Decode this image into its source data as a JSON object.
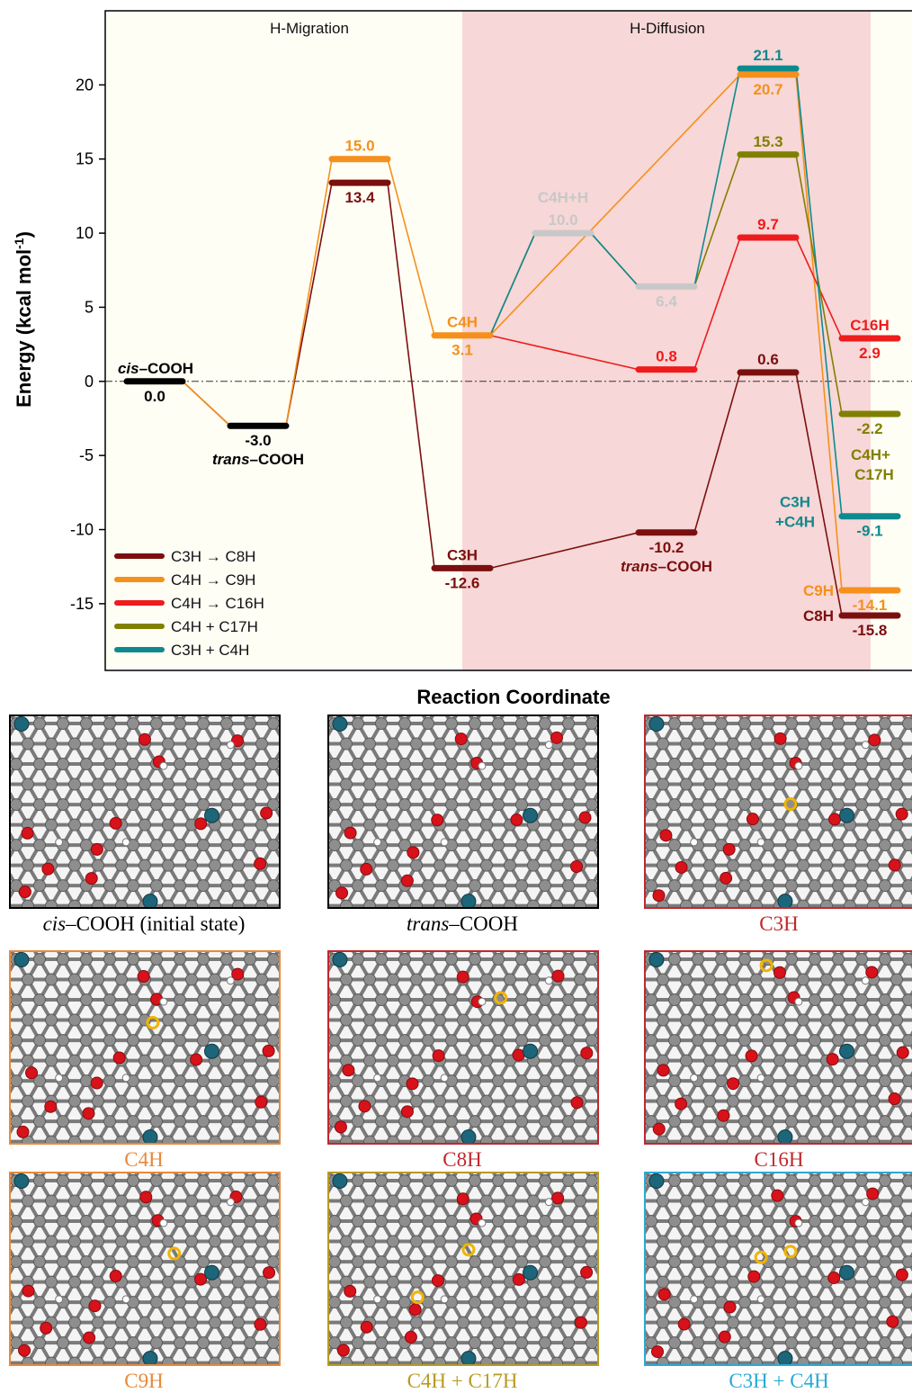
{
  "chart_data": {
    "type": "line",
    "xlabel": "Reaction Coordinate",
    "ylabel": "Energy (kcal mol",
    "ylabel_sup": "-1",
    "ylabel_close": ")",
    "ylim": [
      -19.5,
      25
    ],
    "yticks": [
      -15,
      -10,
      -5,
      0,
      5,
      10,
      15,
      20
    ],
    "regions": [
      {
        "label": "H-Migration",
        "background": "#fefef5"
      },
      {
        "label": "H-Diffusion",
        "background": "#f7d7d7"
      }
    ],
    "colors": {
      "base": "#000000",
      "c3h_c8h": "#7b0f0f",
      "c4h_c9h": "#f5901c",
      "c4h_c16h": "#ee1c1c",
      "c4h_c17h": "#808000",
      "c3h_c4h": "#0e8a8e",
      "intermediate": "#c8c8c8"
    },
    "levels": [
      {
        "id": "cis",
        "x": 1,
        "y": 0.0,
        "value": "0.0",
        "color": "base",
        "name_pre": "cis",
        "name_post": "–COOH"
      },
      {
        "id": "trans",
        "x": 2,
        "y": -3.0,
        "value": "-3.0",
        "color": "base",
        "name_pre": "trans",
        "name_post": "–COOH"
      },
      {
        "id": "ts1_orange",
        "x": 3,
        "y": 15.0,
        "value": "15.0",
        "color": "c4h_c9h"
      },
      {
        "id": "ts1_dark",
        "x": 3,
        "y": 13.4,
        "value": "13.4",
        "color": "c3h_c8h"
      },
      {
        "id": "c3h",
        "x": 4,
        "y": -12.6,
        "value": "-12.6",
        "color": "c3h_c8h",
        "name": "C3H"
      },
      {
        "id": "c4h",
        "x": 4,
        "y": 3.1,
        "value": "3.1",
        "color": "c4h_c9h",
        "name": "C4H"
      },
      {
        "id": "c4h_h",
        "x": 5,
        "y": 10.0,
        "value": "10.0",
        "color": "intermediate",
        "name": "C4H+H"
      },
      {
        "id": "int_64",
        "x": 6,
        "y": 6.4,
        "value": "6.4",
        "color": "intermediate"
      },
      {
        "id": "int_08",
        "x": 6,
        "y": 0.8,
        "value": "0.8",
        "color": "c4h_c16h"
      },
      {
        "id": "trans2",
        "x": 6,
        "y": -10.2,
        "value": "-10.2",
        "color": "c3h_c8h",
        "name_pre": "trans",
        "name_post": "–COOH"
      },
      {
        "id": "ts_211",
        "x": 7,
        "y": 21.1,
        "value": "21.1",
        "color": "c3h_c4h"
      },
      {
        "id": "ts_207",
        "x": 7,
        "y": 20.7,
        "value": "20.7",
        "color": "c4h_c9h"
      },
      {
        "id": "ts_153",
        "x": 7,
        "y": 15.3,
        "value": "15.3",
        "color": "c4h_c17h"
      },
      {
        "id": "ts_97",
        "x": 7,
        "y": 9.7,
        "value": "9.7",
        "color": "c4h_c16h"
      },
      {
        "id": "ts_06",
        "x": 7,
        "y": 0.6,
        "value": "0.6",
        "color": "c3h_c8h"
      },
      {
        "id": "c16h",
        "x": 8,
        "y": 2.9,
        "value": "2.9",
        "color": "c4h_c16h",
        "name": "C16H"
      },
      {
        "id": "c17h",
        "x": 8,
        "y": -2.2,
        "value": "-2.2",
        "color": "c4h_c17h",
        "name1": "C4H+",
        "name2": "C17H"
      },
      {
        "id": "c3hc4h",
        "x": 8,
        "y": -9.1,
        "value": "-9.1",
        "color": "c3h_c4h",
        "name1": "C3H",
        "name2": "+C4H"
      },
      {
        "id": "c9h",
        "x": 8,
        "y": -14.1,
        "value": "-14.1",
        "color": "c4h_c9h",
        "name": "C9H"
      },
      {
        "id": "c8h",
        "x": 8,
        "y": -15.8,
        "value": "-15.8",
        "color": "c3h_c8h",
        "name": "C8H"
      }
    ],
    "series": [
      {
        "name": "C3H → C8H",
        "color": "c3h_c8h",
        "path": [
          "cis",
          "trans",
          "ts1_dark",
          "c3h",
          "trans2",
          "ts_06",
          "c8h"
        ]
      },
      {
        "name": "C4H → C9H",
        "color": "c4h_c9h",
        "path": [
          "cis",
          "trans",
          "ts1_orange",
          "c4h",
          "ts_207",
          "c9h"
        ]
      },
      {
        "name": "C4H → C16H",
        "color": "c4h_c16h",
        "path": [
          "c4h",
          "int_08",
          "ts_97",
          "c16h"
        ]
      },
      {
        "name": "C4H + C17H",
        "color": "c4h_c17h",
        "path": [
          "c4h",
          "c4h_h",
          "int_64",
          "ts_153",
          "c17h"
        ]
      },
      {
        "name": "C3H + C4H",
        "color": "c3h_c4h",
        "path": [
          "c4h",
          "c4h_h",
          "int_64",
          "ts_211",
          "c3hc4h"
        ]
      }
    ],
    "legend_position": "bottom-left"
  },
  "panels": [
    {
      "caption_pre": "cis",
      "caption_post": "–COOH (initial state)",
      "border": "#000000",
      "caption_color": "#000000",
      "markers": []
    },
    {
      "caption_pre": "trans",
      "caption_post": "–COOH",
      "border": "#000000",
      "caption_color": "#000000",
      "markers": []
    },
    {
      "caption": "C3H",
      "border": "#c0282d",
      "caption_color": "#c0282d",
      "markers": [
        [
          0.54,
          0.46
        ]
      ]
    },
    {
      "caption": "C4H",
      "border": "#e8893a",
      "caption_color": "#e8893a",
      "markers": [
        [
          0.53,
          0.37
        ]
      ]
    },
    {
      "caption": "C8H",
      "border": "#c0282d",
      "caption_color": "#c0282d",
      "markers": [
        [
          0.64,
          0.24
        ]
      ]
    },
    {
      "caption": "C16H",
      "border": "#c0282d",
      "caption_color": "#c0282d",
      "markers": [
        [
          0.45,
          0.07
        ]
      ]
    },
    {
      "caption": "C9H",
      "border": "#e8893a",
      "caption_color": "#e8893a",
      "markers": [
        [
          0.61,
          0.42
        ]
      ]
    },
    {
      "caption": "C4H + C17H",
      "border": "#b89a24",
      "caption_color": "#b89a24",
      "markers": [
        [
          0.52,
          0.4
        ],
        [
          0.33,
          0.65
        ]
      ]
    },
    {
      "caption": "C3H + C4H",
      "border": "#2aa9d6",
      "caption_color": "#2aa9d6",
      "markers": [
        [
          0.43,
          0.44
        ],
        [
          0.54,
          0.41
        ]
      ]
    }
  ]
}
